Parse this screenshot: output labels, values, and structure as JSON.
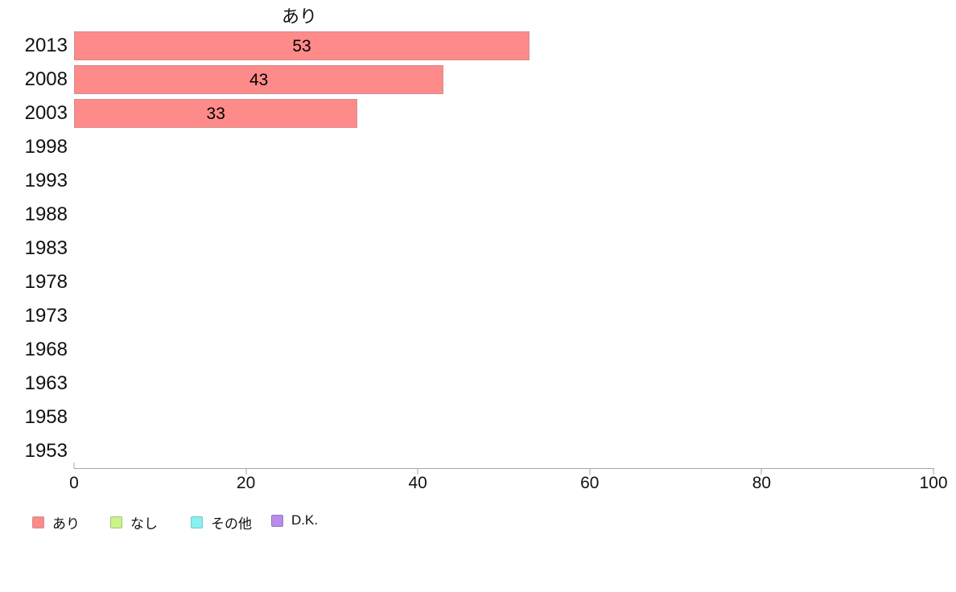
{
  "chart_data": {
    "type": "bar",
    "orientation": "horizontal",
    "title": "あり",
    "categories": [
      "2013",
      "2008",
      "2003",
      "1998",
      "1993",
      "1988",
      "1983",
      "1978",
      "1973",
      "1968",
      "1963",
      "1958",
      "1953"
    ],
    "series": [
      {
        "name": "あり",
        "color": "#ff8a8a",
        "border_color": "#d18f8f",
        "values": [
          53,
          43,
          33,
          null,
          null,
          null,
          null,
          null,
          null,
          null,
          null,
          null,
          null
        ]
      },
      {
        "name": "なし",
        "color": "#ccf28c",
        "border_color": "#a3c473",
        "values": [
          null,
          null,
          null,
          null,
          null,
          null,
          null,
          null,
          null,
          null,
          null,
          null,
          null
        ]
      },
      {
        "name": "その他",
        "color": "#8af0f0",
        "border_color": "#74c6c6",
        "values": [
          null,
          null,
          null,
          null,
          null,
          null,
          null,
          null,
          null,
          null,
          null,
          null,
          null
        ]
      },
      {
        "name": "D.K.",
        "color": "#ba8cee",
        "border_color": "#9674c0",
        "values": [
          null,
          null,
          null,
          null,
          null,
          null,
          null,
          null,
          null,
          null,
          null,
          null,
          null
        ]
      }
    ],
    "xlim": [
      0,
      100
    ],
    "xticks": [
      0,
      20,
      40,
      60,
      80,
      100
    ],
    "grid": false,
    "legend_position": "bottom-left",
    "axis_color": "#a6a6a6",
    "text_color": "#111111",
    "background_color": "#ffffff"
  }
}
